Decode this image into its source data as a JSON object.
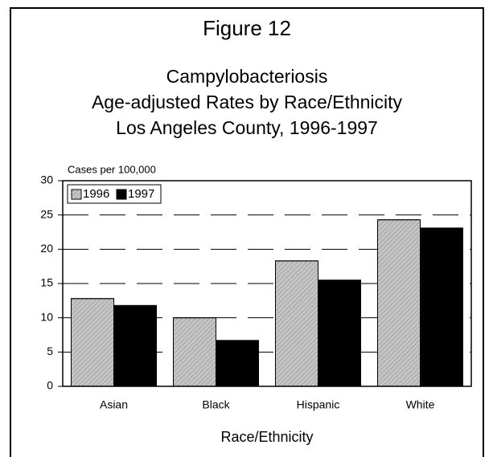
{
  "chart_data": {
    "type": "bar",
    "title": "Figure 12",
    "subtitle": [
      "Campylobacteriosis",
      "Age-adjusted Rates by Race/Ethnicity",
      "Los Angeles County, 1996-1997"
    ],
    "y_label": "Cases per 100,000",
    "x_label": "Race/Ethnicity",
    "categories": [
      "Asian",
      "Black",
      "Hispanic",
      "White"
    ],
    "series": [
      {
        "name": "1996",
        "color": "#c4c4c4",
        "values": [
          12.8,
          10,
          18.3,
          24.3
        ]
      },
      {
        "name": "1997",
        "color": "#000000",
        "values": [
          11.8,
          6.7,
          15.5,
          23.1
        ]
      }
    ],
    "ylim": [
      0,
      30
    ],
    "yticks": [
      0,
      5,
      10,
      15,
      20,
      25,
      30
    ],
    "grid": true,
    "legend": "upper left"
  }
}
